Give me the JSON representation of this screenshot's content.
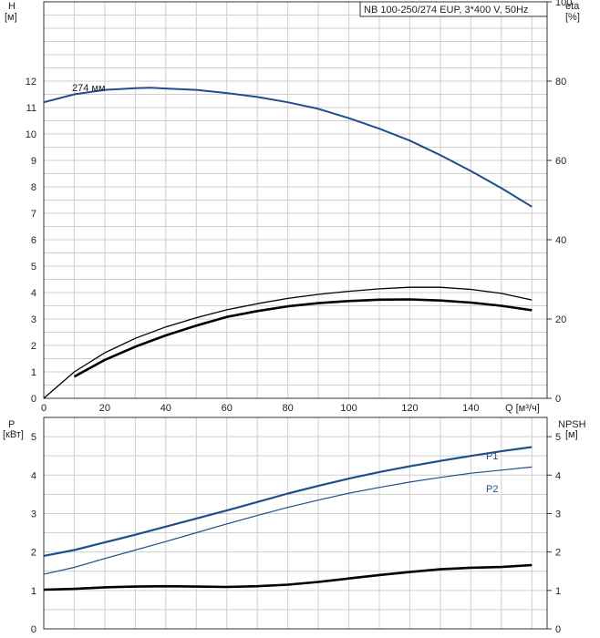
{
  "chart_data": [
    {
      "type": "line",
      "name": "head-efficiency",
      "title": "NB 100-250/274 EUP, 3*400 V, 50Hz",
      "xlabel": "Q [м³/ч]",
      "ylabel_left": "H",
      "ylabel_left_unit": "[м]",
      "ylabel_right": "eta",
      "ylabel_right_unit": "[%]",
      "xlim": [
        0,
        165
      ],
      "ylim_left": [
        0,
        15
      ],
      "ylim_right": [
        0,
        100
      ],
      "x_ticks": [
        0,
        20,
        40,
        60,
        80,
        100,
        120,
        140
      ],
      "y_ticks_left": [
        0,
        1,
        2,
        3,
        4,
        5,
        6,
        7,
        8,
        9,
        10,
        11,
        12
      ],
      "y_ticks_right": [
        0,
        20,
        40,
        60,
        80,
        100
      ],
      "grid": true,
      "series": [
        {
          "name": "274 мм",
          "axis": "left",
          "color": "#1f4e8c",
          "width": 2,
          "x": [
            0,
            10,
            20,
            30,
            35,
            40,
            50,
            60,
            70,
            80,
            90,
            100,
            110,
            120,
            130,
            140,
            150,
            160
          ],
          "y": [
            11.2,
            11.5,
            11.67,
            11.73,
            11.75,
            11.72,
            11.67,
            11.55,
            11.4,
            11.2,
            10.95,
            10.6,
            10.2,
            9.75,
            9.2,
            8.6,
            7.95,
            7.25
          ]
        },
        {
          "axis": "left",
          "color": "#000000",
          "width": 1.3,
          "x": [
            0,
            10,
            20,
            30,
            40,
            50,
            60,
            70,
            80,
            90,
            100,
            110,
            120,
            130,
            140,
            150,
            160
          ],
          "y": [
            0,
            1.0,
            1.72,
            2.27,
            2.7,
            3.05,
            3.35,
            3.58,
            3.78,
            3.93,
            4.05,
            4.14,
            4.2,
            4.2,
            4.12,
            3.97,
            3.72
          ]
        },
        {
          "axis": "left",
          "color": "#000000",
          "width": 2.6,
          "x": [
            10,
            20,
            30,
            40,
            50,
            60,
            70,
            80,
            90,
            100,
            110,
            120,
            130,
            140,
            150,
            160
          ],
          "y": [
            0.82,
            1.45,
            1.95,
            2.38,
            2.75,
            3.08,
            3.3,
            3.48,
            3.6,
            3.68,
            3.73,
            3.74,
            3.7,
            3.62,
            3.5,
            3.33
          ]
        }
      ]
    },
    {
      "type": "line",
      "name": "power-npsh",
      "ylabel_left": "P",
      "ylabel_left_unit": "[кВт]",
      "ylabel_right": "NPSH",
      "ylabel_right_unit": "[м]",
      "xlim": [
        0,
        165
      ],
      "ylim_left": [
        0,
        5.5
      ],
      "ylim_right": [
        0,
        5.5
      ],
      "y_ticks_left": [
        0,
        1,
        2,
        3,
        4,
        5
      ],
      "y_ticks_right": [
        0,
        1,
        2,
        3,
        4,
        5
      ],
      "grid": true,
      "series": [
        {
          "name": "P1",
          "color": "#1f4e8c",
          "width": 2.2,
          "x": [
            0,
            10,
            20,
            30,
            40,
            50,
            60,
            70,
            80,
            90,
            100,
            110,
            120,
            130,
            140,
            150,
            160
          ],
          "y": [
            1.9,
            2.05,
            2.25,
            2.45,
            2.66,
            2.87,
            3.08,
            3.3,
            3.52,
            3.72,
            3.91,
            4.08,
            4.23,
            4.37,
            4.5,
            4.62,
            4.73
          ]
        },
        {
          "name": "P2",
          "color": "#1f4e8c",
          "width": 1.2,
          "x": [
            0,
            10,
            20,
            30,
            40,
            50,
            60,
            70,
            80,
            90,
            100,
            110,
            120,
            130,
            140,
            150,
            160
          ],
          "y": [
            1.42,
            1.6,
            1.83,
            2.05,
            2.27,
            2.5,
            2.73,
            2.95,
            3.16,
            3.35,
            3.53,
            3.68,
            3.82,
            3.94,
            4.05,
            4.13,
            4.21
          ]
        },
        {
          "color": "#000000",
          "width": 2.6,
          "x": [
            0,
            10,
            20,
            30,
            40,
            50,
            60,
            70,
            80,
            90,
            100,
            110,
            120,
            130,
            140,
            150,
            160
          ],
          "y": [
            1.02,
            1.04,
            1.08,
            1.1,
            1.11,
            1.1,
            1.09,
            1.11,
            1.15,
            1.22,
            1.31,
            1.4,
            1.48,
            1.55,
            1.59,
            1.61,
            1.66
          ]
        }
      ]
    }
  ]
}
